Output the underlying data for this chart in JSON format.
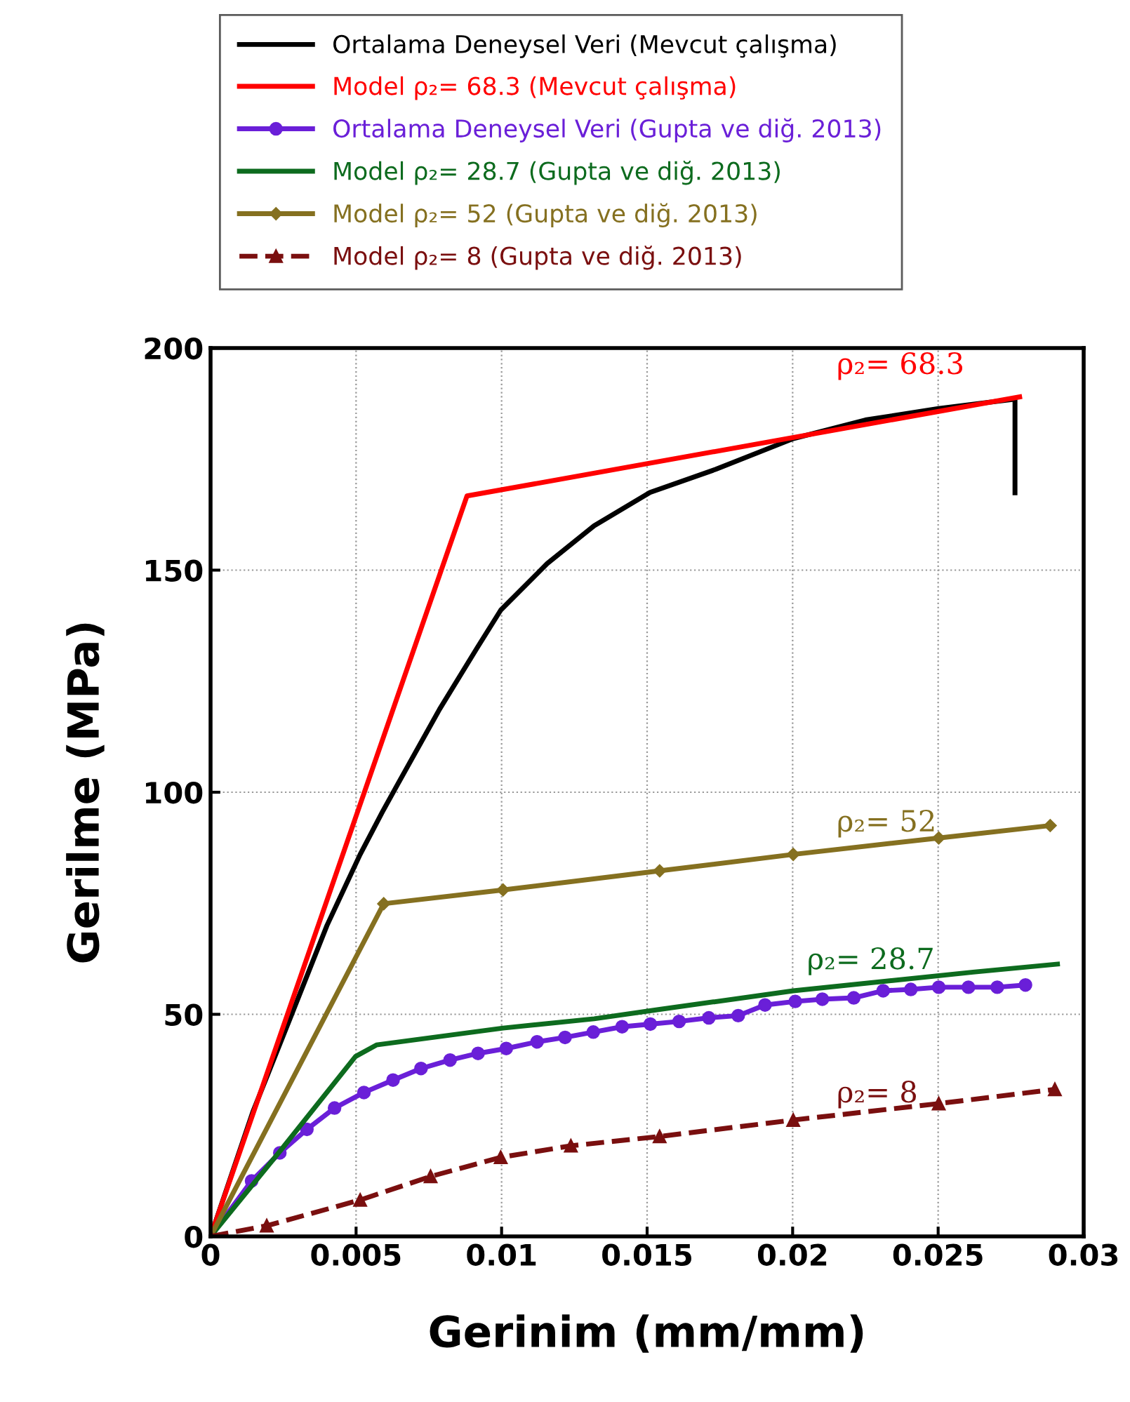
{
  "chart_data": {
    "type": "line",
    "xlabel": "Gerinim (mm/mm)",
    "ylabel": "Gerilme (MPa)",
    "xlim": [
      0,
      0.03
    ],
    "ylim": [
      0,
      200
    ],
    "xticks": [
      0,
      0.005,
      0.01,
      0.015,
      0.02,
      0.025,
      0.03
    ],
    "yticks": [
      0,
      50,
      100,
      150,
      200
    ],
    "grid": true,
    "legend": "top",
    "series": [
      {
        "name": "Ortalama Deneysel Veri (Mevcut çalışma)",
        "color": "#000000",
        "marker": "none",
        "line_style": "solid",
        "x": [
          0,
          0.00145,
          0.00273,
          0.004,
          0.00514,
          0.0059,
          0.00643,
          0.00787,
          0.00916,
          0.00997,
          0.01157,
          0.01318,
          0.0151,
          0.01736,
          0.02002,
          0.0225,
          0.02502,
          0.02764,
          0.02764
        ],
        "values": [
          0,
          28,
          49,
          70,
          86,
          95.5,
          101.8,
          118.7,
          132.5,
          141,
          151.5,
          160,
          167.5,
          172.7,
          179.6,
          183.8,
          186.4,
          188.5,
          167.4
        ]
      },
      {
        "name": "Model ρ₂= 68.3 (Mevcut çalışma)",
        "color": "#ff0000",
        "marker": "none",
        "line_style": "solid",
        "x": [
          0,
          0.00881,
          0.0278
        ],
        "values": [
          0,
          166.7,
          189
        ]
      },
      {
        "name": "Ortalama Deneysel Veri (Gupta ve diğ. 2013)",
        "color": "#6a1fd8",
        "marker": "circle",
        "line_style": "solid",
        "x": [
          0,
          0.00141,
          0.00238,
          0.00331,
          0.00426,
          0.00527,
          0.00627,
          0.00723,
          0.00823,
          0.00919,
          0.01016,
          0.01122,
          0.01218,
          0.01315,
          0.01414,
          0.01511,
          0.0161,
          0.01712,
          0.01813,
          0.01905,
          0.02009,
          0.02102,
          0.0221,
          0.02311,
          0.02406,
          0.02502,
          0.02604,
          0.02703,
          0.028
        ],
        "values": [
          0,
          12.5,
          18.8,
          24.1,
          28.9,
          32.4,
          35.2,
          37.8,
          39.7,
          41.2,
          42.3,
          43.8,
          44.8,
          46,
          47.2,
          47.8,
          48.4,
          49.2,
          49.7,
          52.1,
          52.9,
          53.4,
          53.7,
          55.3,
          55.6,
          56.1,
          56.1,
          56.1,
          56.6
        ]
      },
      {
        "name": "Model ρ₂= 28.7 (Gupta ve diğ. 2013)",
        "color": "#0d6b1e",
        "marker": "none",
        "line_style": "solid",
        "x": [
          0,
          0.00241,
          0.00498,
          0.0057,
          0.01005,
          0.01318,
          0.01543,
          0.02002,
          0.0262,
          0.0291
        ],
        "values": [
          0,
          19.4,
          40.5,
          43.1,
          46.9,
          49,
          51.1,
          55.3,
          59.5,
          61.3
        ]
      },
      {
        "name": "Model ρ₂= 52 (Gupta ve diğ. 2013)",
        "color": "#857020",
        "marker": "diamond",
        "line_style": "solid",
        "x": [
          0,
          0.00595,
          0.01005,
          0.01543,
          0.02002,
          0.02502,
          0.02885
        ],
        "values": [
          0,
          74.9,
          78,
          82.3,
          86,
          89.7,
          92.5
        ]
      },
      {
        "name": "Model ρ₂= 8 (Gupta ve diğ. 2013)",
        "color": "#7a0f0f",
        "marker": "triangle",
        "line_style": "dashed",
        "x": [
          0,
          0.00193,
          0.00514,
          0.00756,
          0.00997,
          0.01238,
          0.01543,
          0.02002,
          0.02502,
          0.02901
        ],
        "values": [
          0,
          2.4,
          8.2,
          13.5,
          17.8,
          20.4,
          22.5,
          26.2,
          29.9,
          33.1
        ]
      }
    ],
    "annotations": [
      "ρ₂= 68.3",
      "ρ₂= 52",
      "ρ₂= 28.7",
      "ρ₂= 8"
    ]
  }
}
